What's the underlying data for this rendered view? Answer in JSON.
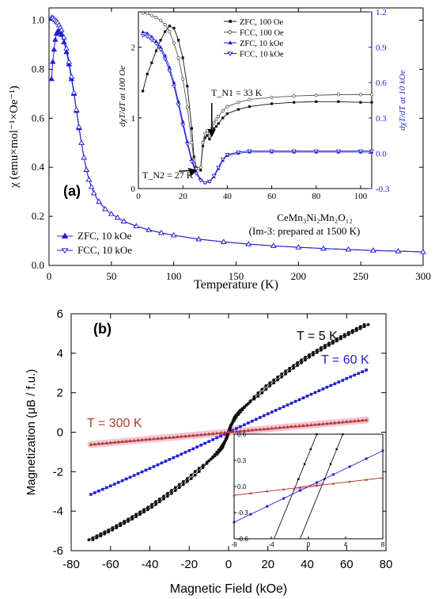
{
  "chart_data": [
    {
      "type": "line",
      "panel_label": "(a)",
      "xlabel": "Temperature (K)",
      "ylabel": "χ (emu×mol⁻¹×Oe⁻¹)",
      "xlim": [
        0,
        300
      ],
      "ylim": [
        0,
        1.05
      ],
      "xticks": [
        0,
        50,
        100,
        150,
        200,
        250,
        300
      ],
      "yticks": [
        0.0,
        0.2,
        0.4,
        0.6,
        0.8,
        1.0
      ],
      "series": [
        {
          "name": "ZFC, 10 kOe",
          "color": "#1f1fd6",
          "marker": "filled-triangle",
          "x": [
            2,
            3,
            4,
            5,
            6,
            7,
            8,
            9,
            10,
            12,
            14,
            16,
            18,
            20,
            22,
            24,
            26,
            28,
            30,
            32,
            34,
            36,
            40,
            45,
            50,
            55,
            60,
            70,
            80,
            90,
            100,
            120,
            140,
            160,
            180,
            200,
            220,
            240,
            260,
            280,
            300
          ],
          "y": [
            0.76,
            0.83,
            0.88,
            0.92,
            0.945,
            0.955,
            0.955,
            0.95,
            0.94,
            0.91,
            0.87,
            0.82,
            0.76,
            0.7,
            0.63,
            0.56,
            0.5,
            0.44,
            0.39,
            0.35,
            0.32,
            0.295,
            0.26,
            0.23,
            0.21,
            0.195,
            0.18,
            0.16,
            0.145,
            0.133,
            0.123,
            0.107,
            0.096,
            0.087,
            0.08,
            0.074,
            0.069,
            0.065,
            0.061,
            0.058,
            0.055
          ]
        },
        {
          "name": "FCC, 10 kOe",
          "color": "#1f1fd6",
          "marker": "open-triangle",
          "x": [
            2,
            3,
            4,
            5,
            6,
            7,
            8,
            9,
            10,
            12,
            14,
            16,
            18,
            20,
            22,
            24,
            26,
            28,
            30,
            32,
            34,
            36,
            40,
            45,
            50,
            55,
            60,
            70,
            80,
            90,
            100,
            120,
            140,
            160,
            180,
            200,
            220,
            240,
            260,
            280,
            300
          ],
          "y": [
            1.01,
            1.01,
            1.005,
            1.0,
            0.995,
            0.99,
            0.98,
            0.97,
            0.96,
            0.93,
            0.885,
            0.83,
            0.77,
            0.705,
            0.635,
            0.565,
            0.5,
            0.44,
            0.39,
            0.35,
            0.32,
            0.295,
            0.26,
            0.23,
            0.21,
            0.195,
            0.18,
            0.16,
            0.145,
            0.133,
            0.123,
            0.107,
            0.096,
            0.087,
            0.08,
            0.074,
            0.069,
            0.065,
            0.061,
            0.058,
            0.055
          ]
        }
      ],
      "legend": [
        "ZFC, 10 kOe",
        "FCC, 10 kOe"
      ],
      "legend_position": "bottom-left"
    },
    {
      "type": "line",
      "inset_of": "(a)",
      "xlim": [
        0,
        105
      ],
      "xticks": [
        0,
        20,
        40,
        60,
        80,
        100
      ],
      "ylabel_left": "dχT/dT at 100 Oe",
      "ylim_left": [
        0,
        2.5
      ],
      "yticks_left": [
        0,
        1,
        2
      ],
      "ylabel_right": "dχT/dT at 10 kOe",
      "ylim_right": [
        -0.3,
        1.2
      ],
      "yticks_right": [
        -0.3,
        0.0,
        0.3,
        0.6,
        0.9,
        1.2
      ],
      "annotations": [
        "T_N1 = 33 K",
        "T_N2 = 27 K"
      ],
      "compound": "CeMn₃Ni₂Mn₂O₁₂",
      "compound_note": "(Im-3: prepared at 1500 K)",
      "series": [
        {
          "name": "ZFC, 100 Oe",
          "axis": "left",
          "color": "#111111",
          "x": [
            2,
            4,
            6,
            8,
            10,
            12,
            14,
            16,
            18,
            20,
            22,
            24,
            25,
            26,
            27,
            28,
            29,
            30,
            31,
            32,
            33,
            34,
            35,
            36,
            38,
            40,
            45,
            50,
            60,
            70,
            80,
            90,
            100,
            105
          ],
          "y": [
            1.38,
            1.62,
            1.78,
            1.95,
            2.1,
            2.22,
            2.3,
            2.27,
            2.1,
            1.85,
            1.45,
            0.85,
            0.45,
            0.3,
            0.28,
            0.26,
            0.6,
            0.72,
            0.75,
            0.7,
            0.78,
            0.85,
            0.88,
            0.92,
            1.0,
            1.06,
            1.12,
            1.16,
            1.2,
            1.22,
            1.23,
            1.23,
            1.22,
            1.22
          ]
        },
        {
          "name": "FCC, 100 Oe",
          "axis": "left",
          "color": "#555555",
          "x": [
            2,
            4,
            6,
            8,
            10,
            12,
            14,
            16,
            18,
            20,
            22,
            24,
            25,
            26,
            27,
            28,
            29,
            30,
            31,
            32,
            33,
            34,
            35,
            36,
            38,
            40,
            45,
            50,
            60,
            70,
            80,
            90,
            100,
            105
          ],
          "y": [
            2.48,
            2.48,
            2.45,
            2.42,
            2.38,
            2.32,
            2.22,
            2.06,
            1.85,
            1.55,
            1.15,
            0.65,
            0.4,
            0.28,
            0.28,
            0.3,
            0.65,
            0.78,
            0.82,
            0.78,
            0.85,
            0.93,
            0.98,
            1.02,
            1.1,
            1.16,
            1.22,
            1.26,
            1.29,
            1.31,
            1.32,
            1.33,
            1.33,
            1.33
          ]
        },
        {
          "name": "ZFC, 10 kOe",
          "axis": "right",
          "color": "#1f1fd6",
          "x": [
            2,
            4,
            6,
            8,
            10,
            12,
            14,
            16,
            18,
            20,
            22,
            24,
            26,
            28,
            30,
            32,
            34,
            36,
            38,
            40,
            45,
            50,
            60,
            70,
            80,
            90,
            100,
            105
          ],
          "y": [
            1.03,
            1.02,
            0.99,
            0.95,
            0.9,
            0.83,
            0.73,
            0.6,
            0.44,
            0.27,
            0.1,
            -0.05,
            -0.16,
            -0.22,
            -0.25,
            -0.24,
            -0.2,
            -0.13,
            -0.06,
            -0.02,
            0.0,
            0.01,
            0.01,
            0.01,
            0.01,
            0.01,
            0.01,
            0.01
          ]
        },
        {
          "name": "FCC, 10 kOe",
          "axis": "right",
          "color": "#1f1fd6",
          "x": [
            2,
            4,
            6,
            8,
            10,
            12,
            14,
            16,
            18,
            20,
            22,
            24,
            26,
            28,
            30,
            32,
            34,
            36,
            38,
            40,
            45,
            50,
            60,
            70,
            80,
            90,
            100,
            105
          ],
          "y": [
            1.0,
            0.99,
            0.96,
            0.93,
            0.88,
            0.8,
            0.7,
            0.57,
            0.41,
            0.24,
            0.08,
            -0.07,
            -0.17,
            -0.23,
            -0.25,
            -0.24,
            -0.19,
            -0.12,
            -0.05,
            -0.01,
            0.01,
            0.02,
            0.02,
            0.02,
            0.02,
            0.02,
            0.02,
            0.02
          ]
        }
      ],
      "legend": [
        "ZFC, 100 Oe",
        "FCC, 100 Oe",
        "ZFC, 10 kOe",
        "FCC, 10 kOe"
      ],
      "legend_position": "top-center"
    },
    {
      "type": "line",
      "panel_label": "(b)",
      "xlabel": "Magnetic Field (kOe)",
      "ylabel": "Magnetization  (μB / f.u.)",
      "xlim": [
        -80,
        80
      ],
      "ylim": [
        -6,
        6
      ],
      "xticks": [
        -80,
        -60,
        -40,
        -20,
        0,
        20,
        40,
        60,
        80
      ],
      "yticks": [
        -6,
        -4,
        -2,
        0,
        2,
        4,
        6
      ],
      "series": [
        {
          "name": "T = 5 K",
          "color": "#111111",
          "x": [
            -70,
            -60,
            -50,
            -40,
            -30,
            -20,
            -10,
            -5,
            -2,
            0,
            2,
            5,
            10,
            20,
            30,
            40,
            50,
            60,
            70
          ],
          "y": [
            -5.45,
            -4.95,
            -4.4,
            -3.8,
            -3.1,
            -2.35,
            -1.45,
            -0.95,
            -0.55,
            0.0,
            0.55,
            0.95,
            1.45,
            2.35,
            3.1,
            3.8,
            4.4,
            4.95,
            5.45
          ]
        },
        {
          "name": "T = 60 K",
          "color": "#1f1fd6",
          "x": [
            -70,
            -60,
            -50,
            -40,
            -30,
            -20,
            -10,
            0,
            10,
            20,
            30,
            40,
            50,
            60,
            70
          ],
          "y": [
            -3.15,
            -2.72,
            -2.28,
            -1.83,
            -1.38,
            -0.93,
            -0.47,
            0.0,
            0.47,
            0.93,
            1.38,
            1.83,
            2.28,
            2.72,
            3.15
          ]
        },
        {
          "name": "T = 300 K",
          "color": "#b03a2e",
          "x": [
            -70,
            -60,
            -50,
            -40,
            -30,
            -20,
            -10,
            0,
            10,
            20,
            30,
            40,
            50,
            60,
            70
          ],
          "y": [
            -0.62,
            -0.53,
            -0.44,
            -0.35,
            -0.27,
            -0.18,
            -0.09,
            0.0,
            0.09,
            0.18,
            0.27,
            0.35,
            0.44,
            0.53,
            0.62
          ]
        }
      ],
      "labels": [
        "T = 5 K",
        "T = 60 K",
        "T = 300 K"
      ]
    },
    {
      "type": "line",
      "inset_of": "(b)",
      "xlim": [
        -8,
        8
      ],
      "ylim": [
        -0.6,
        0.6
      ],
      "xticks": [
        -8,
        -4,
        0,
        4,
        8
      ],
      "yticks": [
        -0.6,
        -0.3,
        0.0,
        0.3,
        0.6
      ],
      "series": [
        {
          "name": "T = 5 K (up)",
          "color": "#111111",
          "x": [
            -3.7,
            0.9
          ],
          "y": [
            -0.6,
            0.6
          ]
        },
        {
          "name": "T = 5 K (down)",
          "color": "#111111",
          "x": [
            -0.9,
            3.7
          ],
          "y": [
            -0.6,
            0.6
          ]
        },
        {
          "name": "T = 60 K",
          "color": "#1f1fd6",
          "x": [
            -8,
            8
          ],
          "y": [
            -0.41,
            0.41
          ]
        },
        {
          "name": "T = 300 K",
          "color": "#b03a2e",
          "x": [
            -8,
            8
          ],
          "y": [
            -0.1,
            0.1
          ]
        }
      ]
    }
  ],
  "colors": {
    "blue": "#1f1fd6",
    "black": "#111111",
    "red": "#b03a2e",
    "gray": "#555555",
    "pink_band": "#f5c6d8"
  }
}
